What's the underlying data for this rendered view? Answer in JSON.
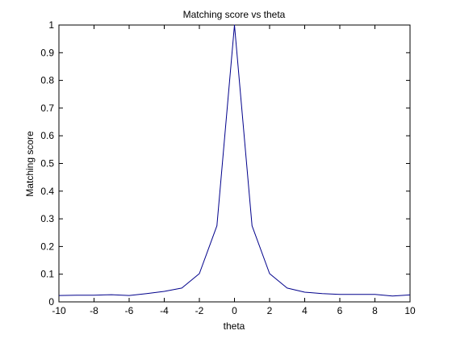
{
  "chart_data": {
    "type": "line",
    "title": "Matching score vs theta",
    "xlabel": "theta",
    "ylabel": "Matching score",
    "xlim": [
      -10,
      10
    ],
    "ylim": [
      0,
      1
    ],
    "xticks": [
      -10,
      -8,
      -6,
      -4,
      -2,
      0,
      2,
      4,
      6,
      8,
      10
    ],
    "yticks": [
      0,
      0.1,
      0.2,
      0.3,
      0.4,
      0.5,
      0.6,
      0.7,
      0.8,
      0.9,
      1
    ],
    "grid": false,
    "line_color": "#00008b",
    "series": [
      {
        "x": [
          -10,
          -9,
          -8,
          -7,
          -6,
          -5,
          -4,
          -3,
          -2,
          -1,
          0,
          1,
          2,
          3,
          4,
          5,
          6,
          7,
          8,
          9,
          10
        ],
        "y": [
          0.023,
          0.024,
          0.024,
          0.026,
          0.023,
          0.03,
          0.038,
          0.05,
          0.102,
          0.275,
          1.0,
          0.275,
          0.102,
          0.05,
          0.035,
          0.03,
          0.027,
          0.027,
          0.027,
          0.021,
          0.025
        ]
      }
    ]
  }
}
